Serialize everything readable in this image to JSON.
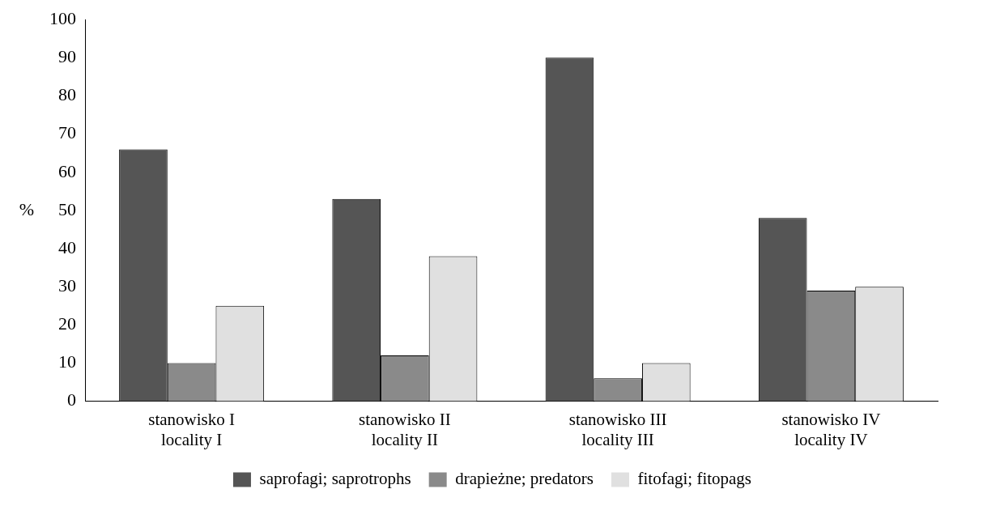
{
  "chart_data": {
    "type": "bar",
    "ylabel": "%",
    "categories": [
      "stanowisko I\nlocality I",
      "stanowisko II\nlocality II",
      "stanowisko III\nlocality III",
      "stanowisko IV\nlocality IV"
    ],
    "series": [
      {
        "name": "saprofagi; saprotrophs",
        "color": "#555555",
        "values": [
          66,
          53,
          90,
          48
        ]
      },
      {
        "name": "drapieżne; predators",
        "color": "#8a8a8a",
        "values": [
          10,
          12,
          6,
          29
        ]
      },
      {
        "name": "fitofagi; fitopags",
        "color": "#e0e0e0",
        "values": [
          25,
          38,
          10,
          30
        ]
      }
    ],
    "ylim": [
      0,
      100
    ],
    "yticks": [
      0,
      10,
      20,
      30,
      40,
      50,
      60,
      70,
      80,
      90,
      100
    ],
    "grid": false,
    "legend": "bottom"
  }
}
